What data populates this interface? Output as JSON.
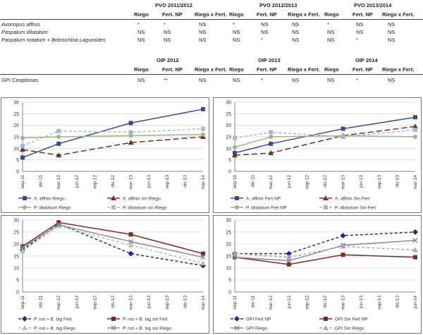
{
  "table1": {
    "periods": [
      "PVO 2011/2012",
      "PVO 2012/2013",
      "PVO 2013/2014"
    ],
    "columns": [
      "Riego",
      "Fert. NP",
      "Riego x Fert."
    ],
    "rows": [
      {
        "name": "Axonopus affinis",
        "values": [
          "*",
          "*",
          "NS",
          "*",
          "NS",
          "NS",
          "*",
          "NS",
          "NS"
        ]
      },
      {
        "name": "Paspalum dilatatum",
        "values": [
          "NS",
          "NS",
          "NS",
          "NS",
          "NS",
          "NS",
          "NS",
          "NS",
          "NS"
        ]
      },
      {
        "name": "Paspalum notatum  + Botriochloa Laguroides",
        "values": [
          "NS",
          "NS",
          "NS",
          "NS",
          "*",
          "NS",
          "NS",
          "*",
          "NS"
        ]
      }
    ]
  },
  "table2": {
    "periods": [
      "OIP 2012",
      "OIP 2013",
      "OIP 2014"
    ],
    "columns": [
      "Riego",
      "Fert. NP",
      "Riego x Fert."
    ],
    "rows": [
      {
        "name": "GPI Cespitosas",
        "values": [
          "NS",
          "**",
          "NS",
          "NS",
          "*",
          "NS",
          "NS",
          "*",
          "NS"
        ]
      }
    ]
  },
  "chart_data": [
    {
      "type": "line",
      "ylim": [
        0,
        30
      ],
      "yticks": [
        0,
        5,
        10,
        15,
        20,
        25,
        30
      ],
      "categories": [
        "sep-11",
        "dic-11",
        "mar-12",
        "jun-12",
        "sep-12",
        "dic-12",
        "mar-13",
        "jun-13",
        "sep-13",
        "dic-13",
        "mar-14"
      ],
      "series": [
        {
          "name": "A. affinis Riego",
          "style": "solid-square",
          "color": "#3b4a8c",
          "points": [
            [
              0,
              6
            ],
            [
              2,
              12
            ],
            [
              6,
              21
            ],
            [
              10,
              27
            ]
          ]
        },
        {
          "name": "A. affinis sin Riego",
          "style": "longdash-triangle",
          "color": "#7a2a2a",
          "points": [
            [
              0,
              9.5
            ],
            [
              2,
              7
            ],
            [
              6,
              12.5
            ],
            [
              10,
              15
            ]
          ]
        },
        {
          "name": "P. dilatatum Riego",
          "style": "solid-circle",
          "color": "#9fb47e",
          "points": [
            [
              0,
              14.5
            ],
            [
              2,
              15
            ],
            [
              6,
              15.5
            ],
            [
              10,
              16
            ]
          ]
        },
        {
          "name": "P. dilatatum sin Riego",
          "style": "dash-square",
          "color": "#aab4d4",
          "points": [
            [
              0,
              11
            ],
            [
              2,
              17.5
            ],
            [
              6,
              17
            ],
            [
              10,
              18.5
            ]
          ]
        }
      ]
    },
    {
      "type": "line",
      "ylim": [
        0,
        30
      ],
      "yticks": [
        0,
        5,
        10,
        15,
        20,
        25,
        30
      ],
      "categories": [
        "sep-11",
        "dic-11",
        "mar-12",
        "jun-12",
        "sep-12",
        "dic-12",
        "mar-13",
        "jun-13",
        "sep-13",
        "dic-13",
        "mar-14"
      ],
      "series": [
        {
          "name": "A. affinis Fert NP",
          "style": "solid-square",
          "color": "#3b4a8c",
          "points": [
            [
              0,
              8
            ],
            [
              2,
              12
            ],
            [
              6,
              18.5
            ],
            [
              10,
              23.5
            ]
          ]
        },
        {
          "name": "A. affinis Sin Fert",
          "style": "longdash-triangle",
          "color": "#7a2a2a",
          "points": [
            [
              0,
              7
            ],
            [
              2,
              8
            ],
            [
              6,
              15.5
            ],
            [
              10,
              19.5
            ]
          ]
        },
        {
          "name": "P. dilatatum Fert NP",
          "style": "solid-circle",
          "color": "#9fb47e",
          "points": [
            [
              0,
              10.5
            ],
            [
              2,
              15
            ],
            [
              6,
              15.5
            ],
            [
              10,
              15
            ]
          ]
        },
        {
          "name": "P. dilatatum Sin Fert",
          "style": "dash-square",
          "color": "#aab4d4",
          "points": [
            [
              0,
              14.5
            ],
            [
              2,
              17
            ],
            [
              6,
              15
            ],
            [
              10,
              18
            ]
          ]
        }
      ]
    },
    {
      "type": "line",
      "ylim": [
        0,
        30
      ],
      "yticks": [
        0,
        5,
        10,
        15,
        20,
        25,
        30
      ],
      "categories": [
        "sep-11",
        "dic-11",
        "mar-12",
        "jun-12",
        "sep-12",
        "dic-12",
        "mar-13",
        "jun-13",
        "sep-13",
        "dic-13",
        "mar-14"
      ],
      "series": [
        {
          "name": "P. not + B. lag Fert",
          "style": "dash-diamond",
          "color": "#1f2f7a",
          "points": [
            [
              0,
              17.5
            ],
            [
              2,
              28.5
            ],
            [
              6,
              16
            ],
            [
              10,
              11
            ]
          ]
        },
        {
          "name": "P. not + B. lag sin Fert",
          "style": "solid-square",
          "color": "#7a2a2a",
          "points": [
            [
              0,
              19
            ],
            [
              2,
              29
            ],
            [
              6,
              24
            ],
            [
              10,
              16
            ]
          ]
        },
        {
          "name": "P. not + B. lag Riego",
          "style": "dash-triangle",
          "color": "#b4c49a",
          "points": [
            [
              0,
              17
            ],
            [
              2,
              27.5
            ],
            [
              6,
              19.5
            ],
            [
              10,
              12
            ]
          ]
        },
        {
          "name": "P. not + B. lag sin Riego",
          "style": "solid-x",
          "color": "#8a8ab0",
          "points": [
            [
              0,
              18.5
            ],
            [
              2,
              28
            ],
            [
              6,
              21
            ],
            [
              10,
              14.5
            ]
          ]
        }
      ]
    },
    {
      "type": "line",
      "ylim": [
        0,
        30
      ],
      "yticks": [
        0,
        5,
        10,
        15,
        20,
        25,
        30
      ],
      "categories": [
        "sep-11",
        "dic-11",
        "mar-12",
        "jun-12",
        "sep-12",
        "dic-12",
        "mar-13",
        "jun-13",
        "sep-13",
        "dic-13",
        "jun-14"
      ],
      "series": [
        {
          "name": "GPI Fert NP",
          "style": "dash-diamond",
          "color": "#1f2f7a",
          "points": [
            [
              0,
              16
            ],
            [
              3,
              16
            ],
            [
              6,
              23.5
            ],
            [
              10,
              25
            ]
          ]
        },
        {
          "name": "GPI Sin Fert NP",
          "style": "solid-square",
          "color": "#7a2a2a",
          "points": [
            [
              0,
              14.5
            ],
            [
              3,
              11.5
            ],
            [
              6,
              15.5
            ],
            [
              10,
              14.5
            ]
          ]
        },
        {
          "name": "GPI Riego",
          "style": "solid-x",
          "color": "#8a8a8a",
          "points": [
            [
              0,
              14.5
            ],
            [
              3,
              13
            ],
            [
              6,
              19.5
            ],
            [
              10,
              21.5
            ]
          ]
        },
        {
          "name": "GPI Sin Riego",
          "style": "dash-triangle",
          "color": "#b0a0c8",
          "points": [
            [
              0,
              16
            ],
            [
              3,
              14.5
            ],
            [
              6,
              19
            ],
            [
              10,
              17.5
            ]
          ]
        }
      ]
    }
  ]
}
